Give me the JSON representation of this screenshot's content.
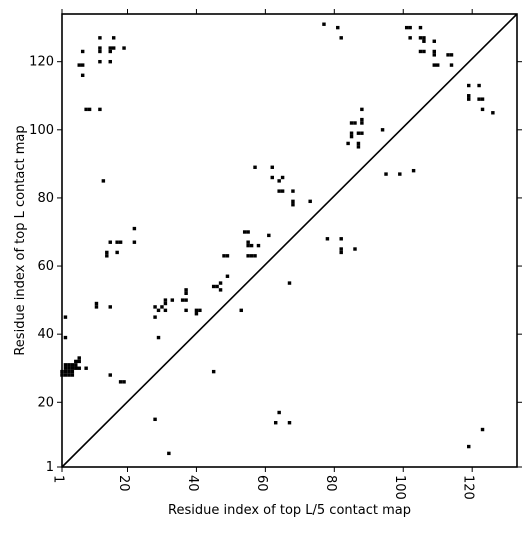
{
  "chart_data": {
    "type": "scatter",
    "title": "",
    "xlabel": "Residue index of top L/5 contact map",
    "ylabel": "Residue index of top L contact map",
    "xlim": [
      1,
      133
    ],
    "ylim": [
      1,
      134
    ],
    "x_ticks": [
      1,
      20,
      40,
      60,
      80,
      100,
      120
    ],
    "y_ticks": [
      1,
      20,
      40,
      60,
      80,
      100,
      120
    ],
    "x_tick_labels": [
      "1",
      "20",
      "40",
      "60",
      "80",
      "100",
      "120"
    ],
    "y_tick_labels": [
      "1",
      "20",
      "40",
      "60",
      "80",
      "100",
      "120"
    ],
    "diagonal": true,
    "marker_color": "#000000",
    "upper_triangle": [
      [
        7,
        123
      ],
      [
        6,
        119
      ],
      [
        7,
        119
      ],
      [
        7,
        116
      ],
      [
        8,
        106
      ],
      [
        9,
        106
      ],
      [
        12,
        106
      ],
      [
        12,
        127
      ],
      [
        12,
        124
      ],
      [
        12,
        123
      ],
      [
        12,
        120
      ],
      [
        15,
        124
      ],
      [
        16,
        124
      ],
      [
        15,
        123
      ],
      [
        16,
        127
      ],
      [
        15,
        120
      ],
      [
        19,
        124
      ],
      [
        13,
        85
      ],
      [
        15,
        67
      ],
      [
        17,
        67
      ],
      [
        18,
        67
      ],
      [
        22,
        67
      ],
      [
        22,
        71
      ],
      [
        14,
        64
      ],
      [
        14,
        63
      ],
      [
        17,
        64
      ],
      [
        11,
        49
      ],
      [
        11,
        48
      ],
      [
        15,
        48
      ],
      [
        28,
        48
      ],
      [
        29,
        47
      ],
      [
        30,
        48
      ],
      [
        31,
        50
      ],
      [
        31,
        49
      ],
      [
        31,
        47
      ],
      [
        33,
        50
      ],
      [
        28,
        45
      ],
      [
        29,
        39
      ],
      [
        36,
        50
      ],
      [
        37,
        50
      ],
      [
        37,
        53
      ],
      [
        37,
        52
      ],
      [
        37,
        47
      ],
      [
        40,
        47
      ],
      [
        40,
        46
      ],
      [
        41,
        47
      ],
      [
        45,
        54
      ],
      [
        46,
        54
      ],
      [
        47,
        55
      ],
      [
        47,
        53
      ],
      [
        48,
        63
      ],
      [
        49,
        63
      ],
      [
        49,
        57
      ],
      [
        53,
        47
      ],
      [
        54,
        70
      ],
      [
        55,
        70
      ],
      [
        55,
        67
      ],
      [
        55,
        66
      ],
      [
        56,
        66
      ],
      [
        55,
        63
      ],
      [
        56,
        63
      ],
      [
        57,
        63
      ],
      [
        58,
        66
      ],
      [
        57,
        89
      ],
      [
        61,
        69
      ],
      [
        62,
        89
      ],
      [
        62,
        86
      ],
      [
        64,
        85
      ],
      [
        65,
        86
      ],
      [
        64,
        82
      ],
      [
        65,
        82
      ],
      [
        68,
        82
      ],
      [
        68,
        79
      ],
      [
        68,
        78
      ],
      [
        73,
        79
      ],
      [
        67,
        55
      ],
      [
        77,
        131
      ],
      [
        81,
        130
      ],
      [
        82,
        127
      ],
      [
        78,
        68
      ],
      [
        82,
        68
      ],
      [
        82,
        65
      ],
      [
        82,
        64
      ],
      [
        86,
        65
      ],
      [
        84,
        96
      ],
      [
        85,
        102
      ],
      [
        85,
        99
      ],
      [
        85,
        98
      ],
      [
        86,
        102
      ],
      [
        87,
        99
      ],
      [
        87,
        96
      ],
      [
        87,
        95
      ],
      [
        88,
        103
      ],
      [
        88,
        102
      ],
      [
        88,
        99
      ],
      [
        88,
        106
      ],
      [
        94,
        100
      ],
      [
        95,
        87
      ],
      [
        99,
        87
      ],
      [
        101,
        130
      ],
      [
        102,
        130
      ],
      [
        102,
        127
      ],
      [
        103,
        88
      ],
      [
        105,
        130
      ],
      [
        105,
        127
      ],
      [
        106,
        127
      ],
      [
        106,
        126
      ],
      [
        105,
        123
      ],
      [
        106,
        123
      ],
      [
        109,
        126
      ],
      [
        109,
        123
      ],
      [
        109,
        122
      ],
      [
        109,
        119
      ],
      [
        110,
        119
      ],
      [
        113,
        122
      ],
      [
        114,
        122
      ],
      [
        114,
        119
      ],
      [
        119,
        113
      ],
      [
        122,
        113
      ],
      [
        119,
        110
      ],
      [
        119,
        109
      ],
      [
        122,
        109
      ],
      [
        123,
        109
      ],
      [
        123,
        106
      ],
      [
        126,
        105
      ]
    ],
    "lower_triangle": [
      [
        1,
        29
      ],
      [
        2,
        29
      ],
      [
        3,
        29
      ],
      [
        4,
        29
      ],
      [
        1,
        28
      ],
      [
        2,
        28
      ],
      [
        3,
        28
      ],
      [
        4,
        28
      ],
      [
        2,
        30
      ],
      [
        3,
        30
      ],
      [
        4,
        30
      ],
      [
        5,
        30
      ],
      [
        6,
        30
      ],
      [
        2,
        31
      ],
      [
        3,
        31
      ],
      [
        4,
        31
      ],
      [
        5,
        31
      ],
      [
        5,
        32
      ],
      [
        6,
        32
      ],
      [
        6,
        33
      ],
      [
        8,
        30
      ],
      [
        2,
        39
      ],
      [
        2,
        45
      ],
      [
        15,
        28
      ],
      [
        18,
        26
      ],
      [
        19,
        26
      ],
      [
        28,
        15
      ],
      [
        32,
        5
      ],
      [
        45,
        29
      ],
      [
        63,
        14
      ],
      [
        64,
        17
      ],
      [
        67,
        14
      ],
      [
        119,
        7
      ],
      [
        123,
        12
      ]
    ]
  }
}
